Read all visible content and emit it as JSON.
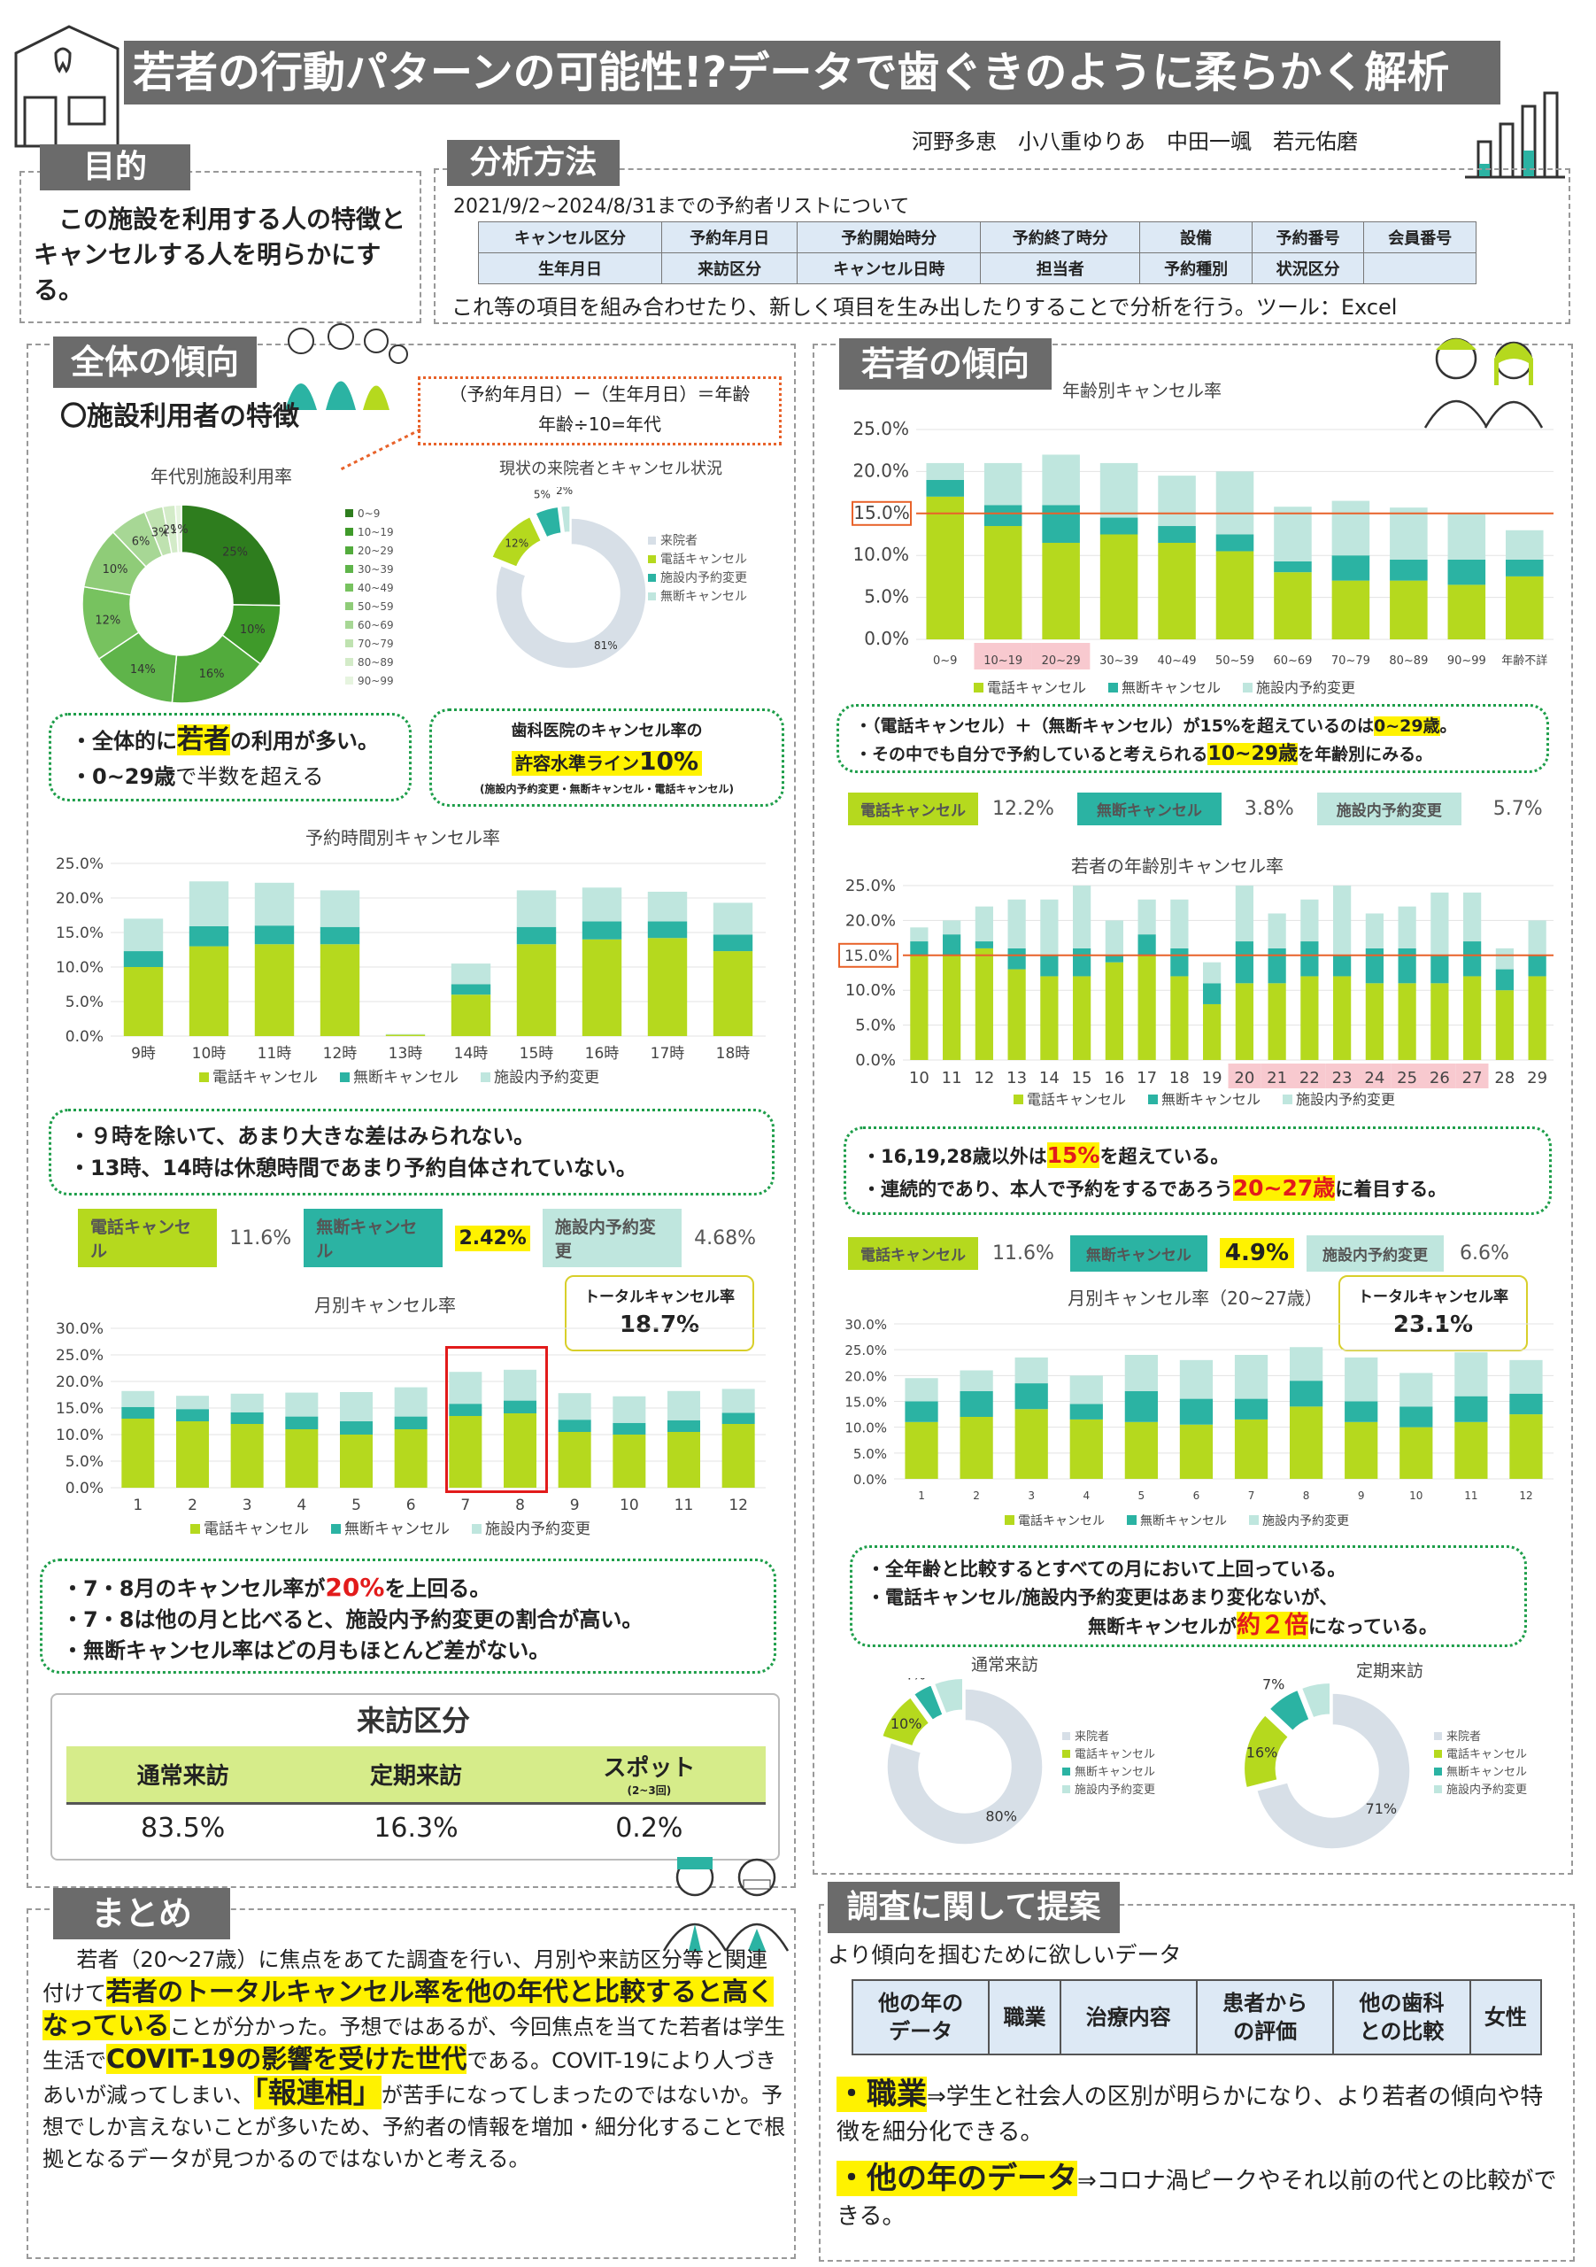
{
  "title": "若者の行動パターンの可能性!?データで歯ぐきのように柔らかく解析",
  "authors": "河野多恵　小八重ゆりあ　中田一颯　若元佑磨",
  "purpose": {
    "heading": "目的",
    "text": "この施設を利用する人の特徴とキャンセルする人を明らかにする。"
  },
  "method": {
    "heading": "分析方法",
    "period": "2021/9/2~2024/8/31までの予約者リストについて",
    "row1": [
      "キャンセル区分",
      "予約年月日",
      "予約開始時分",
      "予約終了時分",
      "設備",
      "予約番号",
      "会員番号"
    ],
    "row2": [
      "生年月日",
      "来訪区分",
      "キャンセル日時",
      "担当者",
      "予約種別",
      "状況区分",
      ""
    ],
    "note": "これ等の項目を組み合わせたり、新しく項目を生み出したりすることで分析を行う。ツール：Excel"
  },
  "overall": {
    "heading": "全体の傾向",
    "sub": "〇施設利用者の特徴",
    "formula1": "（予約年月日）ー（生年月日）＝年齢",
    "formula2": "年齢÷10=年代",
    "donut_title": "年代別施設利用率",
    "status_title": "現状の来院者とキャンセル状況",
    "note1": "・全体的に",
    "note1b": "若者",
    "note1c": "の利用が多い。",
    "note2": "・0~29歳",
    "note2b": "で半数を超える",
    "allow1": "歯科医院のキャンセル率の",
    "allow2": "許容水準ライン",
    "allow3": "10%",
    "allow4": "(施設内予約変更・無断キャンセル・電話キャンセル)",
    "hour_title": "予約時間別キャンセル率",
    "hour_note1": "・９時を除いて、あまり大きな差はみられない。",
    "hour_note2": "・13時、14時は休憩時間であまり予約自体されていない。",
    "rates": {
      "phone_label": "電話キャンセル",
      "phone": "11.6%",
      "noshow_label": "無断キャンセル",
      "noshow": "2.42%",
      "change_label": "施設内予約変更",
      "change": "4.68%"
    },
    "month_title": "月別キャンセル率",
    "total_label": "トータルキャンセル率",
    "total": "18.7%",
    "month_note1a": "・7・8月のキャンセル率が",
    "month_note1b": "20%",
    "month_note1c": "を上回る。",
    "month_note2": "・7・8は他の月と比べると、施設内予約変更の割合が高い。",
    "month_note3": "・無断キャンセル率はどの月もほとんど差がない。",
    "visit": {
      "title": "来訪区分",
      "h1": "通常来訪",
      "h2": "定期来訪",
      "h3": "スポット",
      "h3s": "(2~3回)",
      "v1": "83.5%",
      "v2": "16.3%",
      "v3": "0.2%"
    }
  },
  "young": {
    "heading": "若者の傾向",
    "age_title": "年齢別キャンセル率",
    "note1a": "・（電話キャンセル）＋（無断キャンセル）が15%を超えているのは",
    "note1b": "0~29歳",
    "note1c": "。",
    "note2a": "・その中でも自分で予約していると考えられる",
    "note2b": "10~29歳",
    "note2c": "を年齢別にみる。",
    "rates": {
      "phone_label": "電話キャンセル",
      "phone": "12.2%",
      "noshow_label": "無断キャンセル",
      "noshow": "3.8%",
      "change_label": "施設内予約変更",
      "change": "5.7%"
    },
    "yage_title": "若者の年齢別キャンセル率",
    "ynote1a": "・16,19,28歳以外は",
    "ynote1b": "15%",
    "ynote1c": "を超えている。",
    "ynote2a": "・連続的であり、本人で予約をするであろう",
    "ynote2b": "20~27歳",
    "ynote2c": "に着目する。",
    "rates2": {
      "phone_label": "電話キャンセル",
      "phone": "11.6%",
      "noshow_label": "無断キャンセル",
      "noshow": "4.9%",
      "change_label": "施設内予約変更",
      "change": "6.6%"
    },
    "ymonth_title": "月別キャンセル率（20~27歳）",
    "total_label": "トータルキャンセル率",
    "total": "23.1%",
    "mnote1": "・全年齢と比較するとすべての月において上回っている。",
    "mnote2": "・電話キャンセル/施設内予約変更はあまり変化ないが、",
    "mnote3a": "無断キャンセルが",
    "mnote3b": "約２倍",
    "mnote3c": "になっている。",
    "pie1_title": "通常来訪",
    "pie2_title": "定期来訪"
  },
  "summary": {
    "heading": "まとめ",
    "p1": "若者（20〜27歳）に焦点をあてた調査を行い、月別や来訪区分等と関連付けて",
    "p2": "若者のトータルキャンセル率を他の年代と比較すると高くなっている",
    "p3": "ことが分かった。予想ではあるが、今回焦点を当てた若者は学生生活で",
    "p4": "COVIT-19の影響を受けた世代",
    "p5": "である。COVIT-19により人づきあいが減ってしまい、",
    "p6": "「報連相」",
    "p7": "が苦手になってしまったのではないか。予想でしか言えないことが多いため、予約者の情報を増加・細分化することで根拠となるデータが見つかるのではないかと考える。"
  },
  "proposal": {
    "heading": "調査に関して提案",
    "lead": "より傾向を掴むために欲しいデータ",
    "items": [
      "他の年の\nデータ",
      "職業",
      "治療内容",
      "患者から\nの評価",
      "他の歯科\nとの比較",
      "女性"
    ],
    "b1a": "・職業",
    "b1b": "⇒学生と社会人の区別が明らかになり、より若者の傾向や特徴を細分化できる。",
    "b2a": "・他の年のデータ",
    "b2b": "⇒コロナ渦ピークやそれ以前の代との比較ができる。"
  },
  "colors": {
    "phone": "#b5d91e",
    "noshow": "#2bb3a3",
    "change": "#bfe6de",
    "line": "#e8622a",
    "green": "#1e9e4a"
  },
  "chart_data": [
    {
      "type": "pie",
      "title": "年代別施設利用率",
      "categories": [
        "0~9",
        "10~19",
        "20~29",
        "30~39",
        "40~49",
        "50~59",
        "60~69",
        "70~79",
        "80~89",
        "90~99"
      ],
      "values": [
        25,
        10,
        16,
        14,
        12,
        10,
        6,
        3,
        2,
        1
      ]
    },
    {
      "type": "pie",
      "title": "現状の来院者とキャンセル状況",
      "categories": [
        "来院者",
        "電話キャンセル",
        "施設内予約変更",
        "無断キャンセル"
      ],
      "values": [
        81,
        12,
        5,
        2
      ]
    },
    {
      "type": "bar",
      "title": "予約時間別キャンセル率",
      "categories": [
        "9時",
        "10時",
        "11時",
        "12時",
        "13時",
        "14時",
        "15時",
        "16時",
        "17時",
        "18時"
      ],
      "series": [
        {
          "name": "電話キャンセル",
          "values": [
            10,
            13,
            13.3,
            13.3,
            0.2,
            6,
            13.3,
            14,
            14.2,
            12.3
          ]
        },
        {
          "name": "無断キャンセル",
          "values": [
            2.3,
            2.9,
            2.7,
            2.5,
            0,
            1.5,
            2.5,
            2.6,
            2.4,
            2.4
          ]
        },
        {
          "name": "施設内予約変更",
          "values": [
            4.7,
            6.5,
            6.2,
            5.3,
            0.1,
            3,
            5.3,
            4.9,
            4.3,
            4.6
          ]
        }
      ],
      "ylim": [
        0,
        25
      ]
    },
    {
      "type": "bar",
      "title": "月別キャンセル率",
      "categories": [
        "1",
        "2",
        "3",
        "4",
        "5",
        "6",
        "7",
        "8",
        "9",
        "10",
        "11",
        "12"
      ],
      "series": [
        {
          "name": "電話キャンセル",
          "values": [
            13,
            12.5,
            12,
            11,
            10,
            11,
            13.5,
            14,
            10.5,
            10,
            10.5,
            12
          ]
        },
        {
          "name": "無断キャンセル",
          "values": [
            2.2,
            2.3,
            2.2,
            2.4,
            2.5,
            2.4,
            2.3,
            2.4,
            2.3,
            2.2,
            2.2,
            2.1
          ]
        },
        {
          "name": "施設内予約変更",
          "values": [
            3,
            2.5,
            3.5,
            4.5,
            5.5,
            5.5,
            6,
            5.8,
            5,
            5,
            5.5,
            4.5
          ]
        }
      ],
      "ylim": [
        0,
        30
      ]
    },
    {
      "type": "bar",
      "title": "年齢別キャンセル率",
      "categories": [
        "0~9",
        "10~19",
        "20~29",
        "30~39",
        "40~49",
        "50~59",
        "60~69",
        "70~79",
        "80~89",
        "90~99",
        "年齢不詳"
      ],
      "series": [
        {
          "name": "電話キャンセル",
          "values": [
            17,
            13.5,
            11.5,
            12.5,
            11.5,
            10.5,
            8,
            7,
            7,
            6.5,
            7.5
          ]
        },
        {
          "name": "無断キャンセル",
          "values": [
            2,
            2.5,
            4.5,
            2,
            2,
            2,
            1.3,
            3,
            2.5,
            3,
            2
          ]
        },
        {
          "name": "施設内予約変更",
          "values": [
            2,
            5,
            6,
            6.5,
            6,
            7.5,
            6.5,
            6.5,
            6.2,
            5.5,
            3.5
          ]
        }
      ],
      "ylim": [
        0,
        25
      ],
      "threshold": 15
    },
    {
      "type": "bar",
      "title": "若者の年齢別キャンセル率",
      "categories": [
        "10",
        "11",
        "12",
        "13",
        "14",
        "15",
        "16",
        "17",
        "18",
        "19",
        "20",
        "21",
        "22",
        "23",
        "24",
        "25",
        "26",
        "27",
        "28",
        "29"
      ],
      "series": [
        {
          "name": "電話キャンセル",
          "values": [
            15,
            15,
            16,
            13,
            12,
            12,
            14,
            15,
            12,
            8,
            11,
            11,
            12,
            12,
            11,
            11,
            11,
            12,
            10,
            12
          ]
        },
        {
          "name": "無断キャンセル",
          "values": [
            2,
            3,
            1,
            3,
            3,
            4,
            1,
            3,
            4,
            3,
            6,
            5,
            5,
            3,
            5,
            5,
            4,
            5,
            3,
            3
          ]
        },
        {
          "name": "施設内予約変更",
          "values": [
            2,
            2,
            5,
            7,
            8,
            9,
            5,
            5,
            7,
            3,
            8,
            5,
            6,
            10,
            5,
            6,
            9,
            7,
            3,
            5
          ]
        }
      ],
      "ylim": [
        0,
        25
      ],
      "threshold": 15
    },
    {
      "type": "bar",
      "title": "月別キャンセル率（20~27歳）",
      "categories": [
        "1",
        "2",
        "3",
        "4",
        "5",
        "6",
        "7",
        "8",
        "9",
        "10",
        "11",
        "12"
      ],
      "series": [
        {
          "name": "電話キャンセル",
          "values": [
            11,
            12,
            13.5,
            11.5,
            11,
            10.5,
            11.5,
            14,
            11,
            10,
            11,
            12.5
          ]
        },
        {
          "name": "無断キャンセル",
          "values": [
            4,
            5,
            5,
            3,
            6,
            5,
            4,
            5,
            4,
            4,
            5,
            4
          ]
        },
        {
          "name": "施設内予約変更",
          "values": [
            4.5,
            4,
            5,
            5.5,
            7,
            7.5,
            8.5,
            6.5,
            8.5,
            6.5,
            8.5,
            6.5
          ]
        }
      ],
      "ylim": [
        0,
        30
      ]
    },
    {
      "type": "pie",
      "title": "通常来訪",
      "categories": [
        "来院者",
        "電話キャンセル",
        "無断キャンセル",
        "施設内予約変更"
      ],
      "values": [
        80,
        10,
        4,
        6
      ]
    },
    {
      "type": "pie",
      "title": "定期来訪",
      "categories": [
        "来院者",
        "電話キャンセル",
        "無断キャンセル",
        "施設内予約変更"
      ],
      "values": [
        71,
        16,
        7,
        6
      ]
    }
  ]
}
